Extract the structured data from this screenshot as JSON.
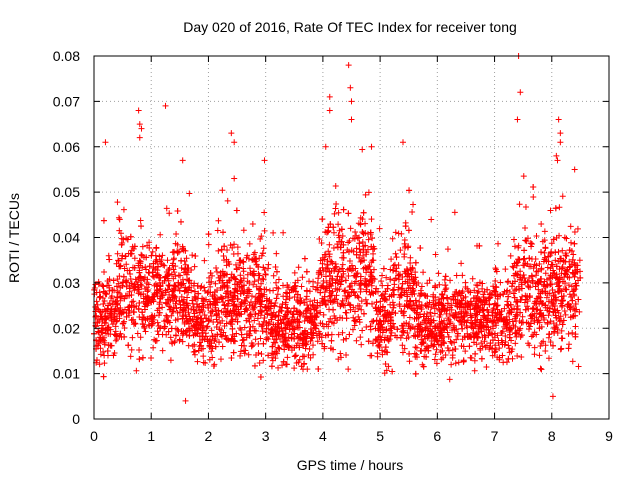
{
  "chart_data": {
    "type": "scatter",
    "title": "Day 020 of 2016, Rate Of TEC Index for receiver tong",
    "xlabel": "GPS time / hours",
    "ylabel": "ROTI / TECUs",
    "xlim": [
      0,
      9
    ],
    "ylim": [
      0,
      0.08
    ],
    "xticks": [
      "0",
      "1",
      "2",
      "3",
      "4",
      "5",
      "6",
      "7",
      "8",
      "9"
    ],
    "yticks": [
      "0",
      "0.01",
      "0.02",
      "0.03",
      "0.04",
      "0.05",
      "0.06",
      "0.07",
      "0.08"
    ],
    "grid": true,
    "marker": "+",
    "series": [
      {
        "name": "ROTI",
        "color": "#ff0000",
        "x_range": [
          0.0,
          8.5
        ],
        "baseline_min": 0.008,
        "baseline_max": 0.032,
        "outliers": [
          {
            "x": 0.2,
            "y": 0.061
          },
          {
            "x": 0.78,
            "y": 0.068
          },
          {
            "x": 0.8,
            "y": 0.065
          },
          {
            "x": 0.83,
            "y": 0.064
          },
          {
            "x": 0.8,
            "y": 0.062
          },
          {
            "x": 1.25,
            "y": 0.069
          },
          {
            "x": 1.55,
            "y": 0.057
          },
          {
            "x": 2.4,
            "y": 0.063
          },
          {
            "x": 2.45,
            "y": 0.061
          },
          {
            "x": 2.45,
            "y": 0.053
          },
          {
            "x": 2.98,
            "y": 0.057
          },
          {
            "x": 4.12,
            "y": 0.071
          },
          {
            "x": 4.12,
            "y": 0.068
          },
          {
            "x": 4.05,
            "y": 0.06
          },
          {
            "x": 4.45,
            "y": 0.078
          },
          {
            "x": 4.48,
            "y": 0.073
          },
          {
            "x": 4.5,
            "y": 0.07
          },
          {
            "x": 4.5,
            "y": 0.066
          },
          {
            "x": 4.85,
            "y": 0.06
          },
          {
            "x": 5.4,
            "y": 0.061
          },
          {
            "x": 7.42,
            "y": 0.08
          },
          {
            "x": 7.45,
            "y": 0.072
          },
          {
            "x": 7.4,
            "y": 0.066
          },
          {
            "x": 8.12,
            "y": 0.066
          },
          {
            "x": 8.15,
            "y": 0.063
          },
          {
            "x": 8.15,
            "y": 0.061
          },
          {
            "x": 8.08,
            "y": 0.058
          },
          {
            "x": 8.1,
            "y": 0.057
          },
          {
            "x": 8.4,
            "y": 0.055
          },
          {
            "x": 8.02,
            "y": 0.005
          },
          {
            "x": 1.6,
            "y": 0.004
          }
        ]
      }
    ]
  }
}
